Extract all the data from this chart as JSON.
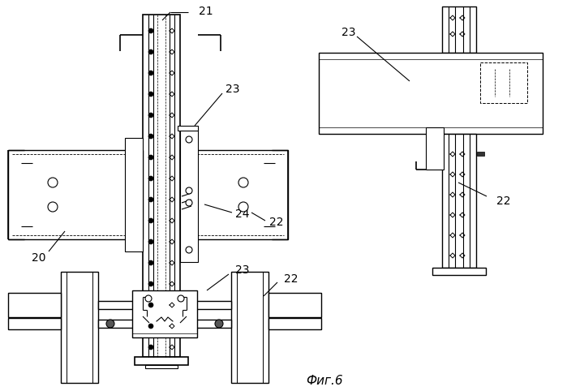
{
  "bg_color": "#ffffff",
  "line_color": "#000000",
  "fig_label": "Фиг.6",
  "label_fontsize": 10,
  "fig_label_fontsize": 11
}
